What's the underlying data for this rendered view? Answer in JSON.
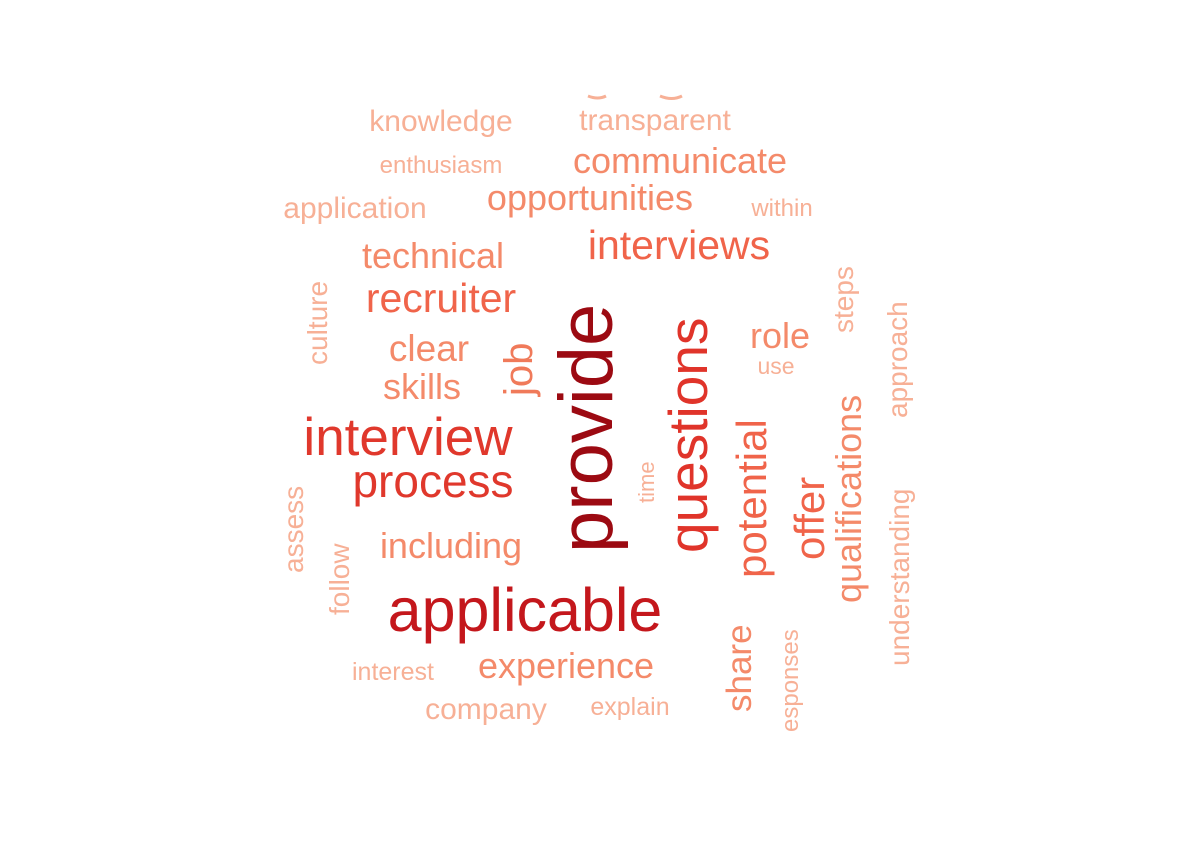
{
  "word_cloud": {
    "words": [
      {
        "text": "provide",
        "color": "#9c0a12"
      },
      {
        "text": "applicable",
        "color": "#c4171c"
      },
      {
        "text": "questions",
        "color": "#e0342a"
      },
      {
        "text": "interview",
        "color": "#e0382c"
      },
      {
        "text": "process",
        "color": "#e0382c"
      },
      {
        "text": "interviews",
        "color": "#f0644a"
      },
      {
        "text": "potential",
        "color": "#f0644a"
      },
      {
        "text": "recruiter",
        "color": "#f0644a"
      },
      {
        "text": "offer",
        "color": "#f0644a"
      },
      {
        "text": "job",
        "color": "#f07a5a"
      },
      {
        "text": "communicate",
        "color": "#f48a6a"
      },
      {
        "text": "opportunities",
        "color": "#f48a6a"
      },
      {
        "text": "technical",
        "color": "#f48a6a"
      },
      {
        "text": "qualifications",
        "color": "#f48a6a"
      },
      {
        "text": "clear",
        "color": "#f48a6a"
      },
      {
        "text": "skills",
        "color": "#f48a6a"
      },
      {
        "text": "role",
        "color": "#f48a6a"
      },
      {
        "text": "including",
        "color": "#f48a6a"
      },
      {
        "text": "experience",
        "color": "#f48a6a"
      },
      {
        "text": "share",
        "color": "#f48a6a"
      },
      {
        "text": "knowledge",
        "color": "#f7b096"
      },
      {
        "text": "transparent",
        "color": "#f7b096"
      },
      {
        "text": "application",
        "color": "#f7b096"
      },
      {
        "text": "enthusiasm",
        "color": "#f7b096"
      },
      {
        "text": "within",
        "color": "#f7b096"
      },
      {
        "text": "culture",
        "color": "#f7b096"
      },
      {
        "text": "steps",
        "color": "#f7b096"
      },
      {
        "text": "approach",
        "color": "#f7b096"
      },
      {
        "text": "use",
        "color": "#f7b096"
      },
      {
        "text": "time",
        "color": "#f7b096"
      },
      {
        "text": "assess",
        "color": "#f7b096"
      },
      {
        "text": "follow",
        "color": "#f7b096"
      },
      {
        "text": "understanding",
        "color": "#f7b096"
      },
      {
        "text": "interest",
        "color": "#f7b096"
      },
      {
        "text": "company",
        "color": "#f7b096"
      },
      {
        "text": "explain",
        "color": "#f7b096"
      },
      {
        "text": "esponses",
        "color": "#f7b096"
      }
    ]
  }
}
